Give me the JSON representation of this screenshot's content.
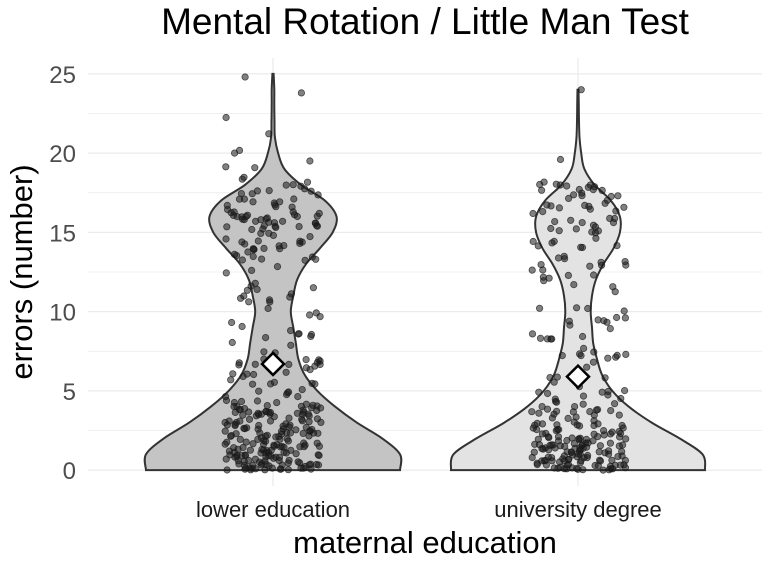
{
  "chart_data": {
    "type": "violin",
    "title": "Mental Rotation / Little Man Test",
    "xlabel": "maternal education",
    "ylabel": "errors (number)",
    "categories": [
      "lower education",
      "university degree"
    ],
    "ylim": [
      -1,
      26
    ],
    "yticks": [
      0,
      5,
      10,
      15,
      20,
      25
    ],
    "grid": true,
    "colors": {
      "violin_fill": [
        "#c4c4c4",
        "#e3e3e3"
      ],
      "violin_stroke": "#333333",
      "points": "#1a1a1a",
      "mean_marker_fill": "#ffffff",
      "grid": "#ebebeb",
      "axis_text": "#4d4d4d"
    },
    "groups": [
      {
        "name": "lower education",
        "mean": 6.7,
        "min": 0,
        "max": 25,
        "density_profile": [
          [
            0,
            1.0
          ],
          [
            1,
            1.0
          ],
          [
            2,
            0.86
          ],
          [
            3,
            0.66
          ],
          [
            4,
            0.49
          ],
          [
            5,
            0.35
          ],
          [
            6,
            0.25
          ],
          [
            7,
            0.2
          ],
          [
            8,
            0.18
          ],
          [
            9,
            0.16
          ],
          [
            10,
            0.14
          ],
          [
            11,
            0.16
          ],
          [
            12,
            0.19
          ],
          [
            13,
            0.26
          ],
          [
            14,
            0.37
          ],
          [
            15,
            0.47
          ],
          [
            16,
            0.5
          ],
          [
            17,
            0.41
          ],
          [
            18,
            0.22
          ],
          [
            19,
            0.09
          ],
          [
            20,
            0.04
          ],
          [
            21,
            0.015
          ],
          [
            22,
            0.012
          ],
          [
            23,
            0.01
          ],
          [
            24,
            0.01
          ],
          [
            25,
            0.005
          ]
        ],
        "clusters": [
          {
            "center": 1.0,
            "spread": 2.8,
            "count": 200
          },
          {
            "center": 16.0,
            "spread": 1.8,
            "count": 70
          },
          {
            "center": 11.0,
            "spread": 4.0,
            "count": 60
          },
          {
            "center": 21.0,
            "spread": 3.0,
            "count": 2
          }
        ],
        "outliers": [
          24.8,
          23.8,
          20.0,
          19.5
        ]
      },
      {
        "name": "university degree",
        "mean": 5.9,
        "min": 0,
        "max": 24,
        "density_profile": [
          [
            0,
            1.0
          ],
          [
            1,
            0.98
          ],
          [
            2,
            0.8
          ],
          [
            3,
            0.58
          ],
          [
            4,
            0.4
          ],
          [
            5,
            0.27
          ],
          [
            6,
            0.19
          ],
          [
            7,
            0.15
          ],
          [
            8,
            0.12
          ],
          [
            9,
            0.11
          ],
          [
            10,
            0.1
          ],
          [
            11,
            0.11
          ],
          [
            12,
            0.14
          ],
          [
            13,
            0.2
          ],
          [
            14,
            0.28
          ],
          [
            15,
            0.33
          ],
          [
            16,
            0.33
          ],
          [
            17,
            0.26
          ],
          [
            18,
            0.13
          ],
          [
            19,
            0.05
          ],
          [
            20,
            0.025
          ],
          [
            21,
            0.012
          ],
          [
            22,
            0.008
          ],
          [
            23,
            0.006
          ],
          [
            24,
            0.004
          ]
        ],
        "clusters": [
          {
            "center": 1.0,
            "spread": 2.8,
            "count": 170
          },
          {
            "center": 15.8,
            "spread": 1.8,
            "count": 50
          },
          {
            "center": 10.0,
            "spread": 4.0,
            "count": 45
          }
        ],
        "outliers": [
          24.0,
          19.6
        ]
      }
    ]
  }
}
